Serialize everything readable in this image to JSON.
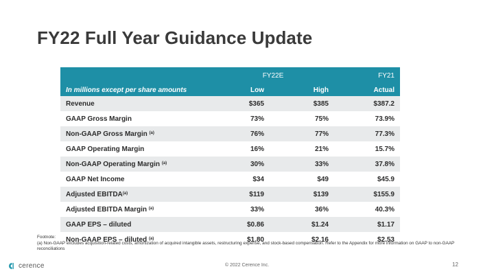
{
  "slide": {
    "title": "FY22 Full Year Guidance Update",
    "page_number": "12",
    "copyright": "© 2022 Cerence Inc.",
    "logo_text": "cerence"
  },
  "table": {
    "group_headers": {
      "fy22e": "FY22E",
      "fy21": "FY21"
    },
    "column_headers": {
      "description": "In millions except per share amounts",
      "low": "Low",
      "high": "High",
      "actual": "Actual"
    },
    "rows": [
      {
        "label": "Revenue",
        "note": "",
        "low": "$365",
        "high": "$385",
        "actual": "$387.2"
      },
      {
        "label": "GAAP Gross Margin",
        "note": "",
        "low": "73%",
        "high": "75%",
        "actual": "73.9%"
      },
      {
        "label": "Non-GAAP Gross Margin",
        "note": "(a)",
        "low": "76%",
        "high": "77%",
        "actual": "77.3%"
      },
      {
        "label": "GAAP Operating Margin",
        "note": "",
        "low": "16%",
        "high": "21%",
        "actual": "15.7%"
      },
      {
        "label": "Non-GAAP Operating Margin",
        "note": "(a)",
        "low": "30%",
        "high": "33%",
        "actual": "37.8%"
      },
      {
        "label": "GAAP Net Income",
        "note": "",
        "low": "$34",
        "high": "$49",
        "actual": "$45.9"
      },
      {
        "label": "Adjusted EBITDA",
        "note": "(a)",
        "low": "$119",
        "high": "$139",
        "actual": "$155.9"
      },
      {
        "label": "Adjusted EBITDA Margin",
        "note": "(a)",
        "low": "33%",
        "high": "36%",
        "actual": "40.3%"
      },
      {
        "label": "GAAP EPS – diluted",
        "note": "",
        "low": "$0.86",
        "high": "$1.24",
        "actual": "$1.17"
      },
      {
        "label": "Non-GAAP EPS – diluted",
        "note": "(a)",
        "low": "$1.80",
        "high": "$2.16",
        "actual": "$2.53"
      }
    ]
  },
  "footnote": {
    "heading": "Footnote:",
    "text": "(a) Non-GAAP excludes acquisition-related costs, amortization of acquired intangible assets, restructuring expense, and stock-based compensation.  Refer to the Appendix for more information on GAAP to non-GAAP reconciliations"
  },
  "colors": {
    "header_teal": "#1e8fa6",
    "row_shade": "#e8eaeb",
    "title_gray": "#3a3a3a",
    "logo_teal": "#2a9bb0"
  },
  "icons": {
    "logo_mark": "cerence-logo-icon"
  }
}
